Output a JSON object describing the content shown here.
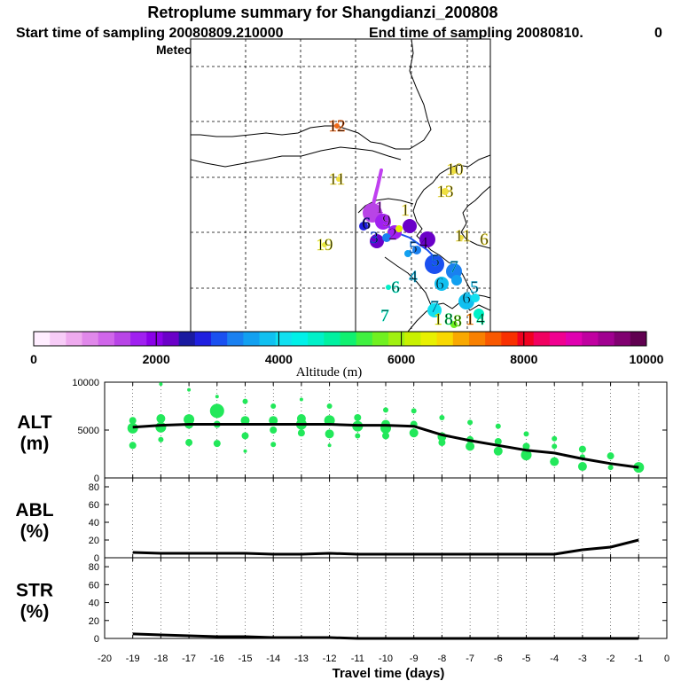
{
  "header": {
    "title": "Retroplume summary for Shangdianzi_200808",
    "line2_start": "Start time of sampling 20080809.210000",
    "line2_end": "End time of sampling 20080810.",
    "line2_tail": "0",
    "line3": "Meteorological data used is ECMWF"
  },
  "colorbar": {
    "ticks": [
      "0",
      "2000",
      "4000",
      "6000",
      "8000",
      "10000"
    ],
    "label": "Altitude (m)",
    "colors": [
      "#ffeeff",
      "#f7ccf7",
      "#eeaaee",
      "#e088ea",
      "#d066ea",
      "#b844e6",
      "#a020f0",
      "#8a00e8",
      "#6a00c8",
      "#1a1aa0",
      "#2020e0",
      "#1a50f0",
      "#1a80f0",
      "#12a0f0",
      "#10c0f0",
      "#10e0f0",
      "#00f0e8",
      "#00f0c8",
      "#00f0a0",
      "#10f070",
      "#40f040",
      "#70f020",
      "#a0f010",
      "#c8f000",
      "#e8f000",
      "#f8d800",
      "#f8a800",
      "#f88000",
      "#f85800",
      "#f83000",
      "#f00020",
      "#f00060",
      "#f00090",
      "#e000b0",
      "#c000a0",
      "#a00090",
      "#800070",
      "#600050"
    ]
  },
  "map": {
    "labels": [
      {
        "t": "12",
        "x": 380,
        "y": 148,
        "c": "#f06a1a"
      },
      {
        "t": "11",
        "x": 380,
        "y": 208,
        "c": "#f0e040"
      },
      {
        "t": "19",
        "x": 366,
        "y": 282,
        "c": "#e8e840"
      },
      {
        "t": "10",
        "x": 513,
        "y": 197,
        "c": "#f0e040"
      },
      {
        "t": "13",
        "x": 502,
        "y": 222,
        "c": "#f0e040"
      },
      {
        "t": "11",
        "x": 522,
        "y": 272,
        "c": "#f0e040"
      },
      {
        "t": "6",
        "x": 546,
        "y": 276,
        "c": "#f0e040"
      },
      {
        "t": "1",
        "x": 428,
        "y": 240,
        "c": "#c040f0"
      },
      {
        "t": "1",
        "x": 457,
        "y": 243,
        "c": "#f0e040"
      },
      {
        "t": "9",
        "x": 436,
        "y": 255,
        "c": "#c040f0"
      },
      {
        "t": "6",
        "x": 413,
        "y": 258,
        "c": "#1a1aa0"
      },
      {
        "t": "2",
        "x": 443,
        "y": 270,
        "c": "#a020f0"
      },
      {
        "t": "3",
        "x": 422,
        "y": 274,
        "c": "#1a50f0"
      },
      {
        "t": "5",
        "x": 466,
        "y": 285,
        "c": "#1a80f0"
      },
      {
        "t": "4",
        "x": 478,
        "y": 280,
        "c": "#6a00c8"
      },
      {
        "t": "5",
        "x": 491,
        "y": 300,
        "c": "#1a80f0"
      },
      {
        "t": "7",
        "x": 512,
        "y": 307,
        "c": "#10c0f0"
      },
      {
        "t": "6",
        "x": 446,
        "y": 330,
        "c": "#00f0c8"
      },
      {
        "t": "4",
        "x": 466,
        "y": 318,
        "c": "#10c0f0"
      },
      {
        "t": "6",
        "x": 496,
        "y": 326,
        "c": "#10c0f0"
      },
      {
        "t": "5",
        "x": 535,
        "y": 330,
        "c": "#10c0f0"
      },
      {
        "t": "6",
        "x": 526,
        "y": 342,
        "c": "#10c0f0"
      },
      {
        "t": "7",
        "x": 434,
        "y": 362,
        "c": "#00f0c8"
      },
      {
        "t": "7",
        "x": 490,
        "y": 352,
        "c": "#10c0f0"
      },
      {
        "t": "1",
        "x": 494,
        "y": 366,
        "c": "#e8f000"
      },
      {
        "t": "8",
        "x": 506,
        "y": 366,
        "c": "#10f070"
      },
      {
        "t": "8",
        "x": 516,
        "y": 368,
        "c": "#70f020"
      },
      {
        "t": "1",
        "x": 530,
        "y": 366,
        "c": "#f88000"
      },
      {
        "t": "4",
        "x": 542,
        "y": 366,
        "c": "#00f0a0"
      }
    ],
    "points": [
      {
        "x": 420,
        "y": 240,
        "r": 11,
        "c": "#b844e6"
      },
      {
        "x": 432,
        "y": 250,
        "r": 9,
        "c": "#a020f0"
      },
      {
        "x": 410,
        "y": 255,
        "r": 5,
        "c": "#2020e0"
      },
      {
        "x": 445,
        "y": 262,
        "r": 8,
        "c": "#a020f0"
      },
      {
        "x": 462,
        "y": 255,
        "r": 8,
        "c": "#6a00c8"
      },
      {
        "x": 450,
        "y": 258,
        "r": 4,
        "c": "#e8f000"
      },
      {
        "x": 425,
        "y": 272,
        "r": 8,
        "c": "#6a00c8"
      },
      {
        "x": 436,
        "y": 268,
        "r": 5,
        "c": "#1a80f0"
      },
      {
        "x": 482,
        "y": 270,
        "r": 9,
        "c": "#6a00c8"
      },
      {
        "x": 470,
        "y": 282,
        "r": 5,
        "c": "#1a80f0"
      },
      {
        "x": 460,
        "y": 286,
        "r": 4,
        "c": "#12a0f0"
      },
      {
        "x": 490,
        "y": 298,
        "r": 11,
        "c": "#1a50f0"
      },
      {
        "x": 512,
        "y": 306,
        "r": 9,
        "c": "#1a80f0"
      },
      {
        "x": 498,
        "y": 320,
        "r": 8,
        "c": "#10c0f0"
      },
      {
        "x": 515,
        "y": 316,
        "r": 6,
        "c": "#12a0f0"
      },
      {
        "x": 526,
        "y": 340,
        "r": 9,
        "c": "#10c0f0"
      },
      {
        "x": 536,
        "y": 336,
        "r": 5,
        "c": "#10e0f0"
      },
      {
        "x": 490,
        "y": 350,
        "r": 8,
        "c": "#10e0f0"
      },
      {
        "x": 540,
        "y": 354,
        "r": 6,
        "c": "#00f0c8"
      },
      {
        "x": 512,
        "y": 366,
        "r": 4,
        "c": "#70f020"
      },
      {
        "x": 380,
        "y": 142,
        "r": 3,
        "c": "#f06a1a"
      },
      {
        "x": 512,
        "y": 192,
        "r": 4,
        "c": "#f0e040"
      },
      {
        "x": 502,
        "y": 216,
        "r": 4,
        "c": "#f0e040"
      },
      {
        "x": 520,
        "y": 268,
        "r": 3,
        "c": "#f0e040"
      },
      {
        "x": 382,
        "y": 202,
        "r": 3,
        "c": "#f0e040"
      },
      {
        "x": 366,
        "y": 276,
        "r": 3,
        "c": "#e8e840"
      },
      {
        "x": 438,
        "y": 324,
        "r": 3,
        "c": "#00f0c8"
      }
    ]
  },
  "chart_data": [
    {
      "type": "line",
      "title": "ALT",
      "ylabel": "(m)",
      "xlabel": "Travel time (days)",
      "xlim": [
        -20,
        0
      ],
      "ylim": [
        0,
        10000
      ],
      "yticks": [
        "0",
        "5000",
        "10000"
      ],
      "xticks": [
        "-20",
        "-19",
        "-18",
        "-17",
        "-16",
        "-15",
        "-14",
        "-13",
        "-12",
        "-11",
        "-10",
        "-9",
        "-8",
        "-7",
        "-6",
        "-5",
        "-4",
        "-3",
        "-2",
        "-1",
        "0"
      ],
      "series": [
        {
          "name": "mean altitude",
          "x": [
            -19,
            -18,
            -17,
            -16,
            -15,
            -14,
            -13,
            -12,
            -11,
            -10,
            -9,
            -8,
            -7,
            -6,
            -5,
            -4,
            -3,
            -2,
            -1
          ],
          "values": [
            5300,
            5500,
            5600,
            5600,
            5600,
            5600,
            5600,
            5600,
            5500,
            5500,
            5400,
            4500,
            3900,
            3400,
            2900,
            2600,
            2000,
            1500,
            1100
          ]
        }
      ],
      "scatter": [
        {
          "x": -19,
          "y": 6000,
          "s": 4
        },
        {
          "x": -19,
          "y": 5200,
          "s": 6
        },
        {
          "x": -19,
          "y": 3400,
          "s": 4
        },
        {
          "x": -18,
          "y": 9800,
          "s": 2
        },
        {
          "x": -18,
          "y": 6200,
          "s": 5
        },
        {
          "x": -18,
          "y": 5300,
          "s": 6
        },
        {
          "x": -18,
          "y": 4000,
          "s": 3
        },
        {
          "x": -17,
          "y": 9200,
          "s": 2
        },
        {
          "x": -17,
          "y": 6100,
          "s": 6
        },
        {
          "x": -17,
          "y": 5600,
          "s": 5
        },
        {
          "x": -17,
          "y": 3700,
          "s": 4
        },
        {
          "x": -16,
          "y": 8500,
          "s": 2
        },
        {
          "x": -16,
          "y": 7000,
          "s": 8
        },
        {
          "x": -16,
          "y": 5600,
          "s": 4
        },
        {
          "x": -16,
          "y": 3600,
          "s": 4
        },
        {
          "x": -15,
          "y": 8000,
          "s": 3
        },
        {
          "x": -15,
          "y": 6000,
          "s": 5
        },
        {
          "x": -15,
          "y": 4400,
          "s": 4
        },
        {
          "x": -15,
          "y": 2800,
          "s": 2
        },
        {
          "x": -14,
          "y": 7500,
          "s": 3
        },
        {
          "x": -14,
          "y": 6000,
          "s": 5
        },
        {
          "x": -14,
          "y": 5000,
          "s": 4
        },
        {
          "x": -14,
          "y": 3500,
          "s": 3
        },
        {
          "x": -13,
          "y": 8200,
          "s": 2
        },
        {
          "x": -13,
          "y": 6200,
          "s": 5
        },
        {
          "x": -13,
          "y": 5600,
          "s": 6
        },
        {
          "x": -13,
          "y": 4700,
          "s": 4
        },
        {
          "x": -12,
          "y": 7500,
          "s": 3
        },
        {
          "x": -12,
          "y": 6000,
          "s": 6
        },
        {
          "x": -12,
          "y": 4600,
          "s": 5
        },
        {
          "x": -12,
          "y": 3400,
          "s": 2
        },
        {
          "x": -11,
          "y": 6300,
          "s": 4
        },
        {
          "x": -11,
          "y": 5400,
          "s": 6
        },
        {
          "x": -11,
          "y": 4400,
          "s": 3
        },
        {
          "x": -10,
          "y": 7100,
          "s": 3
        },
        {
          "x": -10,
          "y": 5600,
          "s": 5
        },
        {
          "x": -10,
          "y": 5200,
          "s": 6
        },
        {
          "x": -10,
          "y": 4400,
          "s": 4
        },
        {
          "x": -9,
          "y": 7000,
          "s": 3
        },
        {
          "x": -9,
          "y": 5600,
          "s": 4
        },
        {
          "x": -9,
          "y": 4700,
          "s": 5
        },
        {
          "x": -8,
          "y": 6300,
          "s": 3
        },
        {
          "x": -8,
          "y": 4300,
          "s": 5
        },
        {
          "x": -8,
          "y": 3700,
          "s": 4
        },
        {
          "x": -7,
          "y": 5800,
          "s": 3
        },
        {
          "x": -7,
          "y": 4000,
          "s": 4
        },
        {
          "x": -7,
          "y": 3300,
          "s": 5
        },
        {
          "x": -6,
          "y": 5400,
          "s": 3
        },
        {
          "x": -6,
          "y": 3800,
          "s": 4
        },
        {
          "x": -6,
          "y": 2800,
          "s": 5
        },
        {
          "x": -5,
          "y": 4600,
          "s": 3
        },
        {
          "x": -5,
          "y": 3300,
          "s": 4
        },
        {
          "x": -5,
          "y": 2400,
          "s": 6
        },
        {
          "x": -4,
          "y": 4100,
          "s": 3
        },
        {
          "x": -4,
          "y": 3300,
          "s": 3
        },
        {
          "x": -4,
          "y": 1700,
          "s": 5
        },
        {
          "x": -3,
          "y": 3000,
          "s": 4
        },
        {
          "x": -3,
          "y": 2200,
          "s": 3
        },
        {
          "x": -3,
          "y": 1200,
          "s": 5
        },
        {
          "x": -2,
          "y": 2300,
          "s": 4
        },
        {
          "x": -2,
          "y": 1100,
          "s": 3
        },
        {
          "x": -1,
          "y": 1100,
          "s": 6
        }
      ]
    },
    {
      "type": "line",
      "title": "ABL",
      "ylabel": "(%)",
      "xlim": [
        -20,
        0
      ],
      "ylim": [
        0,
        90
      ],
      "yticks": [
        "0",
        "20",
        "40",
        "60",
        "80"
      ],
      "series": [
        {
          "name": "ABL fraction",
          "x": [
            -19,
            -18,
            -17,
            -16,
            -15,
            -14,
            -13,
            -12,
            -11,
            -10,
            -9,
            -8,
            -7,
            -6,
            -5,
            -4,
            -3,
            -2,
            -1
          ],
          "values": [
            6,
            5,
            5,
            5,
            5,
            4,
            4,
            5,
            4,
            4,
            4,
            4,
            4,
            4,
            4,
            4,
            9,
            12,
            20
          ]
        }
      ]
    },
    {
      "type": "line",
      "title": "STR",
      "ylabel": "(%)",
      "xlim": [
        -20,
        0
      ],
      "ylim": [
        0,
        90
      ],
      "yticks": [
        "0",
        "20",
        "40",
        "60",
        "80"
      ],
      "series": [
        {
          "name": "STR fraction",
          "x": [
            -19,
            -18,
            -17,
            -16,
            -15,
            -14,
            -13,
            -12,
            -11,
            -10,
            -9,
            -8,
            -7,
            -6,
            -5,
            -4,
            -3,
            -2,
            -1
          ],
          "values": [
            5,
            4,
            3,
            2,
            2,
            1,
            1,
            1,
            0,
            0,
            0,
            0,
            0,
            0,
            0,
            0,
            0,
            0,
            0
          ]
        }
      ]
    }
  ]
}
